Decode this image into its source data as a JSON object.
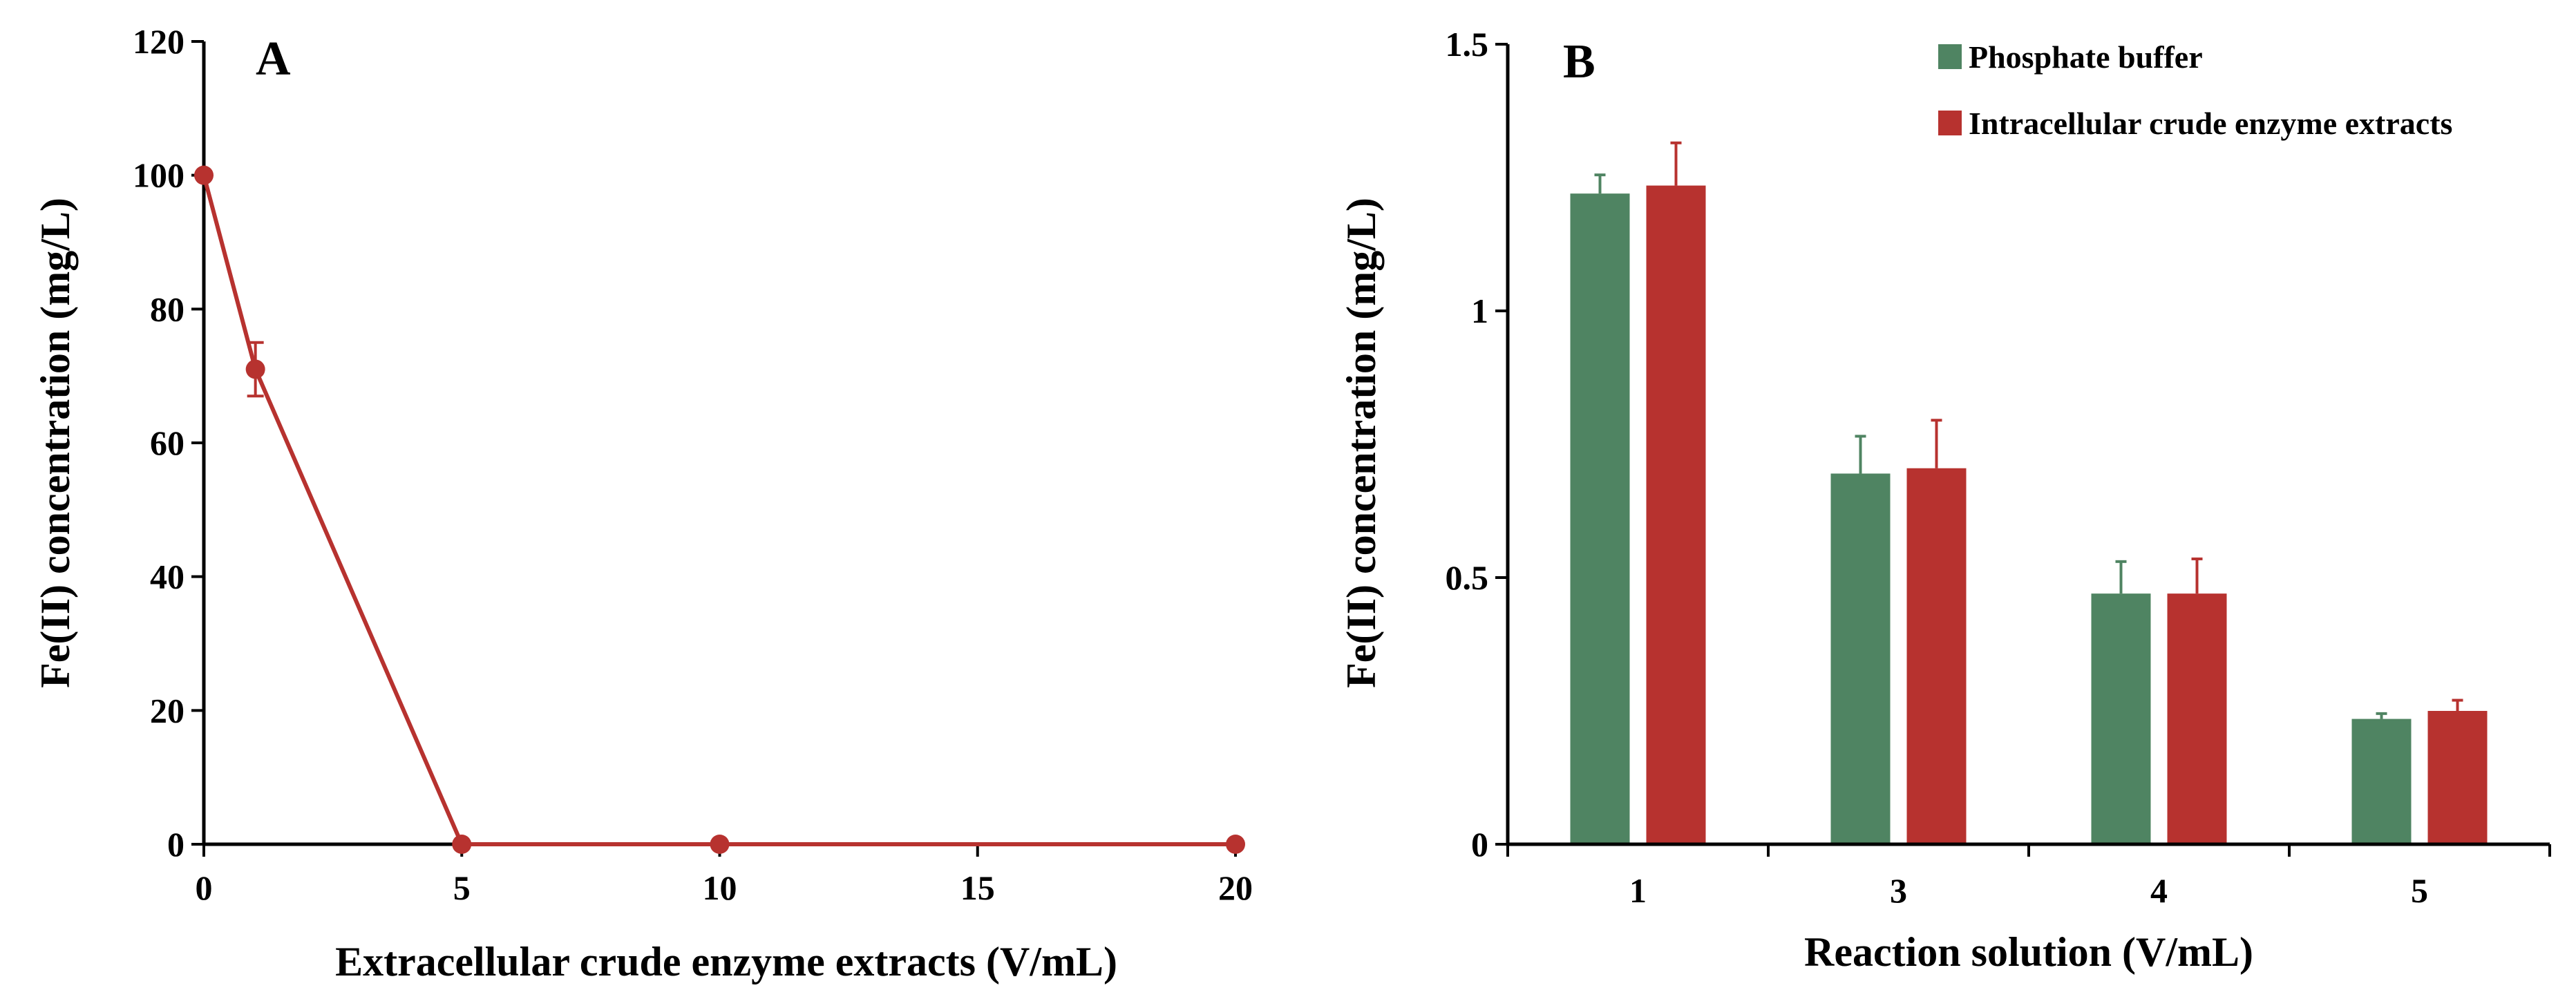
{
  "colors": {
    "red": "#b7322f",
    "green": "#4f8462"
  },
  "chart_data": [
    {
      "panel": "A",
      "type": "line",
      "xlabel": "Extracellular crude enzyme extracts (V/mL)",
      "ylabel": "Fe(II)  concentration (mg/L)",
      "xlim": [
        0,
        20
      ],
      "ylim": [
        0,
        120
      ],
      "x_ticks": [
        0,
        5,
        10,
        15,
        20
      ],
      "y_ticks": [
        0,
        20,
        40,
        60,
        80,
        100,
        120
      ],
      "grid": false,
      "series": [
        {
          "name": "Fe(II) concentration",
          "color": "#b7322f",
          "x": [
            0,
            1,
            5,
            10,
            20
          ],
          "y": [
            100,
            71,
            0,
            0,
            0
          ],
          "error": [
            0,
            4,
            0,
            0,
            0
          ]
        }
      ]
    },
    {
      "panel": "B",
      "type": "bar",
      "xlabel": "Reaction solution (V/mL)",
      "ylabel": "Fe(II)  concentration (mg/L)",
      "categories": [
        "1",
        "3",
        "4",
        "5"
      ],
      "ylim": [
        0,
        1.5
      ],
      "y_ticks": [
        0,
        0.5,
        1,
        1.5
      ],
      "y_tick_labels": [
        "0",
        "0.5",
        "1",
        "1.5"
      ],
      "grid": false,
      "legend_position": "top-right",
      "series": [
        {
          "name": "Phosphate buffer",
          "color": "#4f8462",
          "values": [
            1.22,
            0.695,
            0.47,
            0.235
          ],
          "error": [
            0.035,
            0.07,
            0.06,
            0.01
          ]
        },
        {
          "name": "Intracellular crude enzyme extracts",
          "color": "#b7322f",
          "values": [
            1.235,
            0.705,
            0.47,
            0.25
          ],
          "error": [
            0.08,
            0.09,
            0.065,
            0.02
          ]
        }
      ]
    }
  ]
}
